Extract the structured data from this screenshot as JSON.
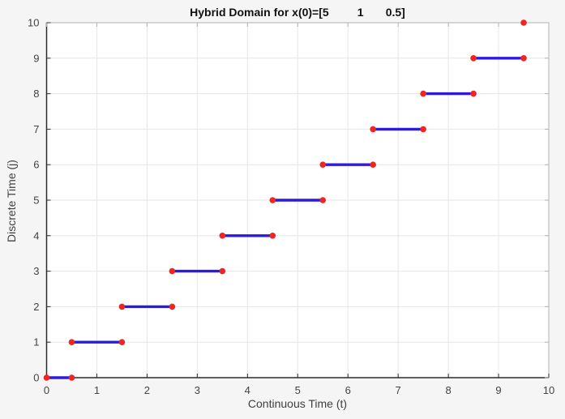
{
  "figure": {
    "background": "#f5f5f5",
    "plot_background": "#ffffff",
    "axis_color": "#2b2b2b",
    "box_color": "#b2b2b2",
    "grid_color": "#e6e6e6",
    "tick_label_color": "#424242",
    "title_color": "#111111",
    "label_color": "#3f3f3f"
  },
  "chart_data": {
    "type": "line",
    "title": "Hybrid Domain for x(0)=[5         1       0.5]",
    "xlabel": "Continuous Time (t)",
    "ylabel": "Discrete Time (j)",
    "xlim": [
      0,
      10
    ],
    "ylim": [
      0,
      10
    ],
    "xticks": [
      0,
      1,
      2,
      3,
      4,
      5,
      6,
      7,
      8,
      9,
      10
    ],
    "yticks": [
      0,
      1,
      2,
      3,
      4,
      5,
      6,
      7,
      8,
      9,
      10
    ],
    "grid": true,
    "series_style": {
      "line_color": "#2b1ae0",
      "line_width": 3.4,
      "marker": "circle",
      "marker_color": "#f0251e",
      "marker_radius": 3.8
    },
    "segments": [
      {
        "j": 0,
        "t0": 0,
        "t1": 0.5
      },
      {
        "j": 1,
        "t0": 0.5,
        "t1": 1.5
      },
      {
        "j": 2,
        "t0": 1.5,
        "t1": 2.5
      },
      {
        "j": 3,
        "t0": 2.5,
        "t1": 3.5
      },
      {
        "j": 4,
        "t0": 3.5,
        "t1": 4.5
      },
      {
        "j": 5,
        "t0": 4.5,
        "t1": 5.5
      },
      {
        "j": 6,
        "t0": 5.5,
        "t1": 6.5
      },
      {
        "j": 7,
        "t0": 6.5,
        "t1": 7.5
      },
      {
        "j": 8,
        "t0": 7.5,
        "t1": 8.5
      },
      {
        "j": 9,
        "t0": 8.5,
        "t1": 9.5
      }
    ],
    "jump_points": [
      {
        "t": 9.5,
        "j": 10
      }
    ]
  }
}
